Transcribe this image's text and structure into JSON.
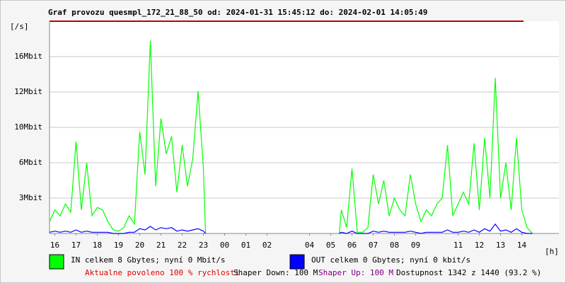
{
  "chart_data": {
    "type": "line",
    "title": "Graf provozu quesmpl_172_21_88_50 od: 2024-01-31 15:45:12 do: 2024-02-01 14:05:49",
    "y_label": "[/s]",
    "x_label": "[h]",
    "xlim": [
      15.75,
      39.75
    ],
    "xticks": [
      16,
      17,
      18,
      19,
      20,
      21,
      22,
      23,
      {
        "value": 24,
        "label": "00"
      },
      {
        "value": 25,
        "label": "01"
      },
      {
        "value": 26,
        "label": "02"
      },
      {
        "value": 28,
        "label": "04"
      },
      {
        "value": 29,
        "label": "05"
      },
      {
        "value": 30,
        "label": "06"
      },
      {
        "value": 31,
        "label": "07"
      },
      {
        "value": 32,
        "label": "08"
      },
      {
        "value": 33,
        "label": "09"
      },
      {
        "value": 35,
        "label": "11"
      },
      {
        "value": 36,
        "label": "12"
      },
      {
        "value": 37,
        "label": "13"
      },
      {
        "value": 38,
        "label": "14"
      }
    ],
    "ylim": [
      0,
      20
    ],
    "yticks": [
      {
        "value": 3,
        "label": "3Mbit"
      },
      {
        "value": 6,
        "label": "6Mbit"
      },
      {
        "value": 10,
        "label": "10Mbit"
      },
      {
        "value": 12,
        "label": "12Mbit"
      },
      {
        "value": 16,
        "label": "16Mbit"
      }
    ],
    "grid": true,
    "x": [
      15.75,
      16.0,
      16.25,
      16.5,
      16.75,
      17.0,
      17.25,
      17.5,
      17.75,
      18.0,
      18.25,
      18.5,
      18.75,
      19.0,
      19.25,
      19.5,
      19.75,
      20.0,
      20.25,
      20.5,
      20.75,
      21.0,
      21.25,
      21.5,
      21.75,
      22.0,
      22.25,
      22.5,
      22.75,
      23.0,
      23.1,
      26.0,
      29.4,
      29.5,
      29.75,
      30.0,
      30.25,
      30.5,
      30.75,
      31.0,
      31.25,
      31.5,
      31.75,
      32.0,
      32.25,
      32.5,
      32.75,
      33.0,
      33.25,
      33.5,
      33.75,
      34.0,
      34.25,
      34.5,
      34.75,
      35.0,
      35.25,
      35.5,
      35.75,
      36.0,
      36.25,
      36.5,
      36.75,
      37.0,
      37.25,
      37.5,
      37.75,
      38.0,
      38.25,
      38.5
    ],
    "series": [
      {
        "name": "IN celkem 8 Gbytes; nyní 0 Mbit/s",
        "color": "#00ff00",
        "values": [
          1.0,
          2.0,
          1.5,
          2.5,
          1.8,
          8.4,
          2.0,
          6.0,
          1.5,
          2.2,
          2.0,
          1.0,
          0.3,
          0.2,
          0.5,
          1.5,
          0.8,
          9.5,
          5.0,
          17.8,
          4.0,
          10.5,
          7.0,
          9.0,
          3.5,
          8.0,
          4.0,
          6.5,
          12.1,
          5.5,
          0,
          null,
          0,
          2.0,
          0.5,
          5.5,
          0.1,
          0.1,
          0.5,
          5.0,
          2.5,
          4.5,
          1.5,
          3.0,
          2.0,
          1.5,
          5.0,
          2.5,
          1.0,
          2.0,
          1.5,
          2.5,
          3.0,
          8.0,
          1.5,
          2.5,
          3.5,
          2.5,
          8.2,
          2.0,
          8.8,
          3.0,
          13.6,
          3.0,
          6.0,
          2.0,
          8.8,
          2.0,
          0.5,
          0
        ]
      },
      {
        "name": "OUT celkem 0 Gbytes; nyní 0 kbit/s",
        "color": "#0000ff",
        "values": [
          0.1,
          0.2,
          0.1,
          0.2,
          0.1,
          0.3,
          0.1,
          0.2,
          0.1,
          0.1,
          0.1,
          0.1,
          0,
          0,
          0,
          0.1,
          0.1,
          0.4,
          0.3,
          0.6,
          0.3,
          0.5,
          0.4,
          0.5,
          0.2,
          0.3,
          0.2,
          0.3,
          0.4,
          0.2,
          0,
          null,
          0,
          0.1,
          0,
          0.2,
          0,
          0,
          0,
          0.2,
          0.1,
          0.2,
          0.1,
          0.1,
          0.1,
          0.1,
          0.2,
          0.1,
          0,
          0.1,
          0.1,
          0.1,
          0.1,
          0.3,
          0.1,
          0.1,
          0.2,
          0.1,
          0.3,
          0.1,
          0.4,
          0.2,
          0.8,
          0.2,
          0.3,
          0.1,
          0.4,
          0.1,
          0,
          0
        ]
      }
    ],
    "footer": {
      "allowed": "Aktualne povoleno 100 % rychlosti",
      "shaper_down": "Shaper Down: 100 M",
      "shaper_up": "Shaper Up: 100 M",
      "availability": "Dostupnost 1342 z 1440 (93.2 %)"
    }
  }
}
